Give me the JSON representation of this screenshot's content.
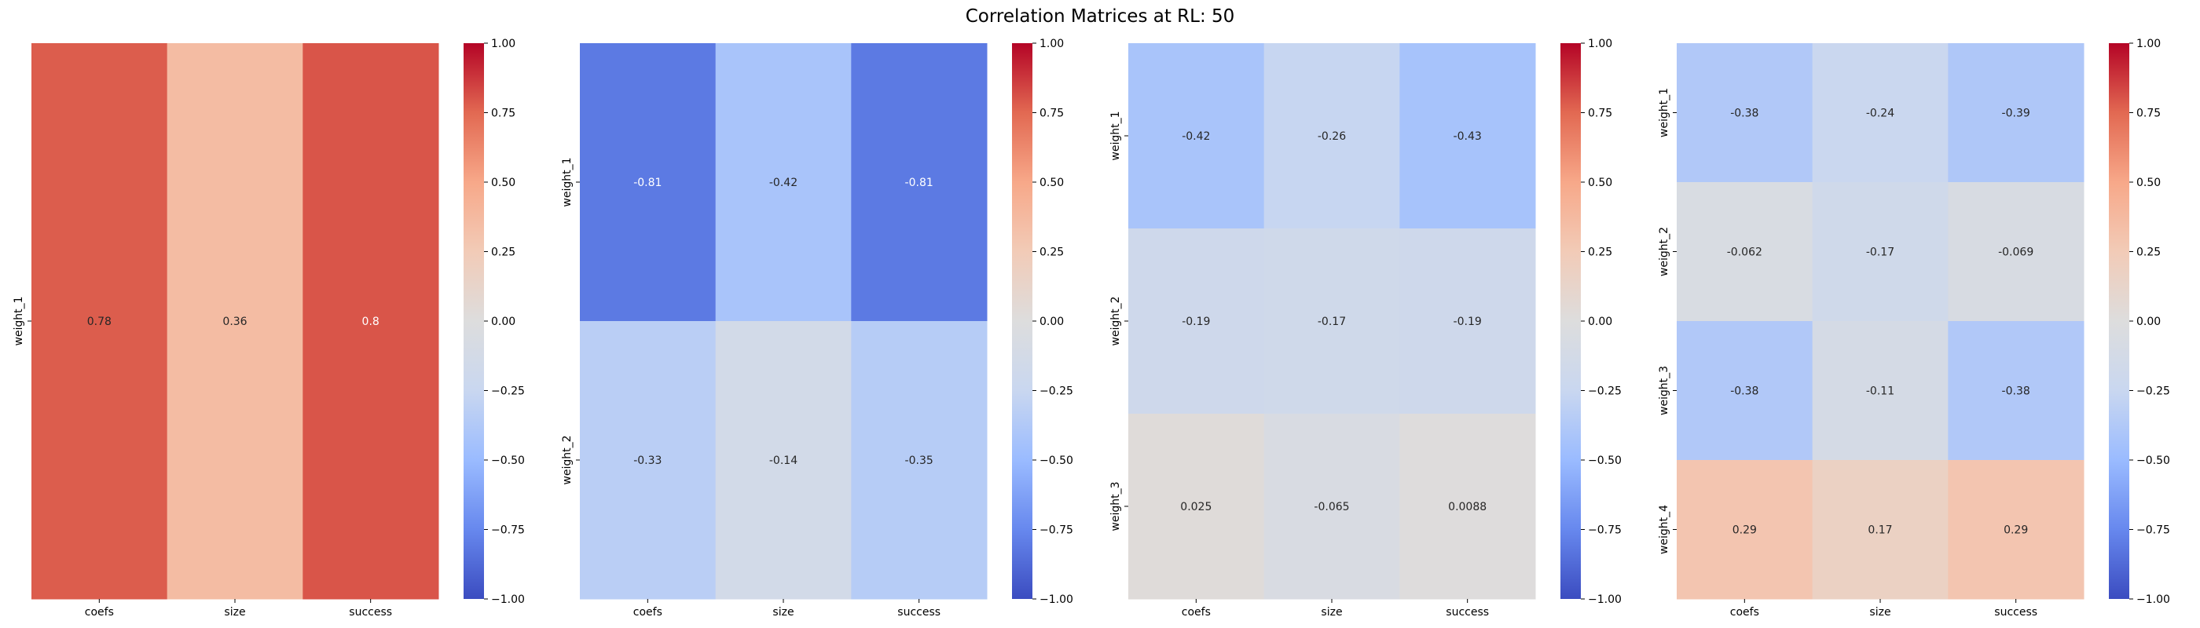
{
  "title": "Correlation Matrices at RL: 50",
  "colormap": "coolwarm",
  "colormap_stops": [
    "#3b4cc0",
    "#6788ee",
    "#9abbff",
    "#c9d7f0",
    "#dddddd",
    "#f2cbb7",
    "#f7a889",
    "#e26952",
    "#b40426"
  ],
  "colorbar": {
    "range": [
      -1.0,
      1.0
    ],
    "ticks": [
      1.0,
      0.75,
      0.5,
      0.25,
      0.0,
      -0.25,
      -0.5,
      -0.75,
      -1.0
    ],
    "tick_labels": [
      "1.00",
      "0.75",
      "0.50",
      "0.25",
      "0.00",
      "−0.25",
      "−0.50",
      "−0.75",
      "−1.00"
    ]
  },
  "chart_data": [
    {
      "type": "heatmap",
      "columns": [
        "coefs",
        "size",
        "success"
      ],
      "rows": [
        "weight_1"
      ],
      "values": [
        [
          0.78,
          0.36,
          0.8
        ]
      ],
      "labels": [
        [
          "0.78",
          "0.36",
          "0.8"
        ]
      ],
      "vmin": -1,
      "vmax": 1
    },
    {
      "type": "heatmap",
      "columns": [
        "coefs",
        "size",
        "success"
      ],
      "rows": [
        "weight_1",
        "weight_2"
      ],
      "values": [
        [
          -0.81,
          -0.42,
          -0.81
        ],
        [
          -0.33,
          -0.14,
          -0.35
        ]
      ],
      "labels": [
        [
          "-0.81",
          "-0.42",
          "-0.81"
        ],
        [
          "-0.33",
          "-0.14",
          "-0.35"
        ]
      ],
      "vmin": -1,
      "vmax": 1
    },
    {
      "type": "heatmap",
      "columns": [
        "coefs",
        "size",
        "success"
      ],
      "rows": [
        "weight_1",
        "weight_2",
        "weight_3"
      ],
      "values": [
        [
          -0.42,
          -0.26,
          -0.43
        ],
        [
          -0.19,
          -0.17,
          -0.19
        ],
        [
          0.025,
          -0.065,
          0.0088
        ]
      ],
      "labels": [
        [
          "-0.42",
          "-0.26",
          "-0.43"
        ],
        [
          "-0.19",
          "-0.17",
          "-0.19"
        ],
        [
          "0.025",
          "-0.065",
          "0.0088"
        ]
      ],
      "vmin": -1,
      "vmax": 1
    },
    {
      "type": "heatmap",
      "columns": [
        "coefs",
        "size",
        "success"
      ],
      "rows": [
        "weight_1",
        "weight_2",
        "weight_3",
        "weight_4"
      ],
      "values": [
        [
          -0.38,
          -0.24,
          -0.39
        ],
        [
          -0.062,
          -0.17,
          -0.069
        ],
        [
          -0.38,
          -0.11,
          -0.38
        ],
        [
          0.29,
          0.17,
          0.29
        ]
      ],
      "labels": [
        [
          "-0.38",
          "-0.24",
          "-0.39"
        ],
        [
          "-0.062",
          "-0.17",
          "-0.069"
        ],
        [
          "-0.38",
          "-0.11",
          "-0.38"
        ],
        [
          "0.29",
          "0.17",
          "0.29"
        ]
      ],
      "vmin": -1,
      "vmax": 1
    }
  ]
}
